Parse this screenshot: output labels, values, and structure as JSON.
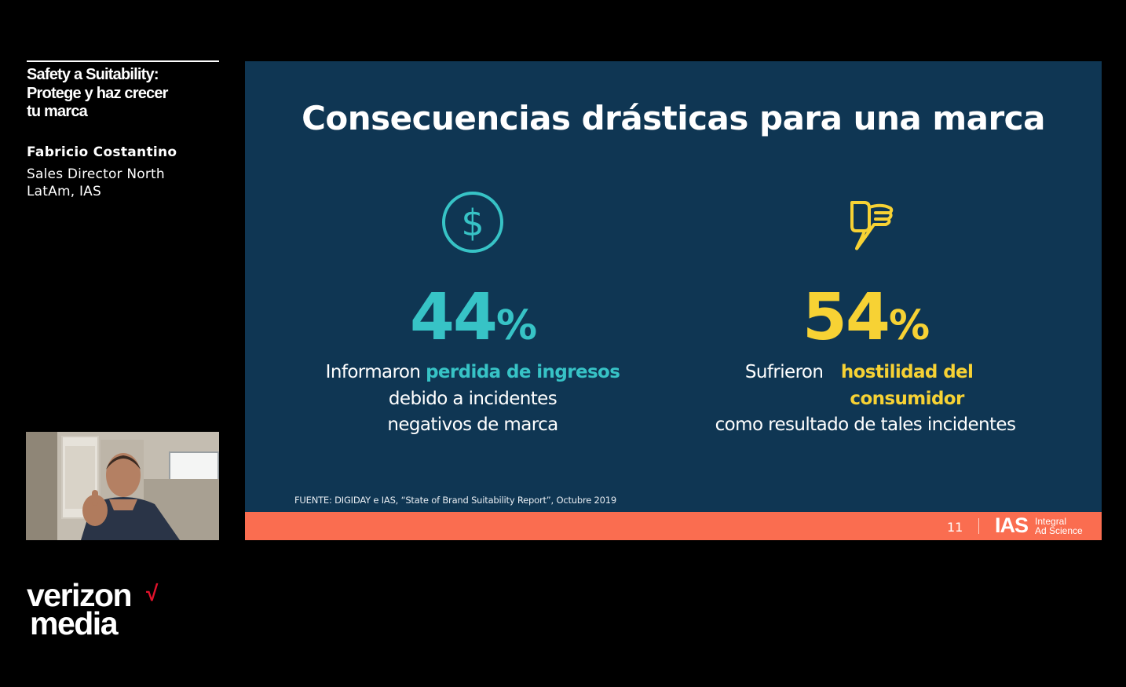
{
  "sidebar": {
    "session_title": "Safety a Suitability:\nProtege y haz crecer\ntu marca",
    "speaker_name": "Fabricio Costantino",
    "speaker_role": "Sales Director North\nLatAm, IAS"
  },
  "brand": {
    "line1": "verizon",
    "line2": "media",
    "check": "√"
  },
  "slide": {
    "title": "Consecuencias drásticas para una marca",
    "stats": [
      {
        "icon": "dollar-circle-icon",
        "number": "44",
        "percent": "%",
        "color": "#37c3c6",
        "desc_pre": "Informaron ",
        "desc_highlight": "perdida de ingresos",
        "desc_post": "debido a incidentes negativos de marca"
      },
      {
        "icon": "thumbs-down-icon",
        "number": "54",
        "percent": "%",
        "color": "#f7d234",
        "desc_pre": "Sufrieron ",
        "desc_highlight": "hostilidad del consumidor",
        "desc_post": "como resultado de tales incidentes"
      }
    ],
    "source": "FUENTE: DIGIDAY e IAS, “State of Brand Suitability Report”, Octubre 2019",
    "page_number": "11",
    "footer_logo_mark": "IAS",
    "footer_logo_name": "Integral\nAd Science",
    "background_color": "#0f3653",
    "footer_color": "#fa6d50"
  }
}
